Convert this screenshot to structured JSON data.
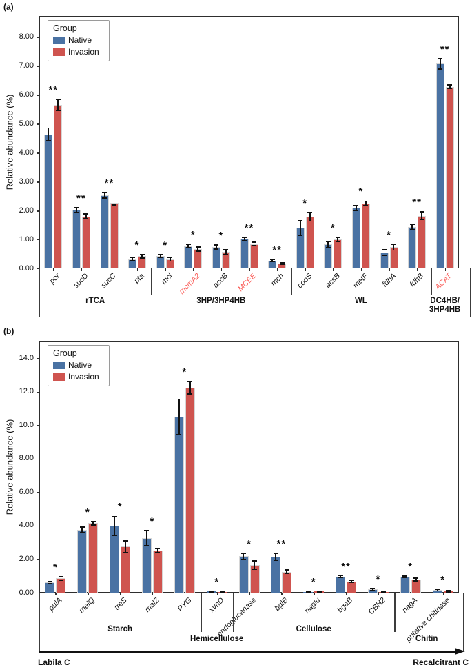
{
  "figure": {
    "panel_a_label": "(a)",
    "panel_b_label": "(b)"
  },
  "colors": {
    "native_bar": "#4a72a3",
    "invasion_bar": "#cf544f",
    "red_gene_label": "#fa5f5a",
    "axis": "#2e2e2e"
  },
  "chart_data": [
    {
      "panel": "a",
      "type": "bar",
      "ylabel": "Relative abundance (%)",
      "ylim": [
        0,
        8.73
      ],
      "grid": false,
      "legend": {
        "title": "Group",
        "position": "upper left",
        "entries": [
          {
            "label": "Native",
            "color": "#4a72a3"
          },
          {
            "label": "Invasion",
            "color": "#cf544f"
          }
        ]
      },
      "yticks": [
        {
          "v": 0,
          "label": "0.00"
        },
        {
          "v": 1,
          "label": "1.00"
        },
        {
          "v": 2,
          "label": "2.00"
        },
        {
          "v": 3,
          "label": "3.00"
        },
        {
          "v": 4,
          "label": "4.00"
        },
        {
          "v": 5,
          "label": "5.00"
        },
        {
          "v": 6,
          "label": "6.00"
        },
        {
          "v": 7,
          "label": "7.00"
        },
        {
          "v": 8,
          "label": "8.00"
        }
      ],
      "categories": [
        {
          "label": "por",
          "sig": "**",
          "red": false
        },
        {
          "label": "sucD",
          "sig": "**",
          "red": false
        },
        {
          "label": "sucC",
          "sig": "**",
          "red": false
        },
        {
          "label": "pta",
          "sig": "*",
          "red": false
        },
        {
          "label": "mcl",
          "sig": "*",
          "red": false
        },
        {
          "label": "mcmA2",
          "sig": "*",
          "red": true
        },
        {
          "label": "accB",
          "sig": "*",
          "red": false
        },
        {
          "label": "MCEE",
          "sig": "**",
          "red": true
        },
        {
          "label": "mch",
          "sig": "**",
          "red": false
        },
        {
          "label": "cooS",
          "sig": "*",
          "red": false
        },
        {
          "label": "acsB",
          "sig": "*",
          "red": false
        },
        {
          "label": "metF",
          "sig": "*",
          "red": false
        },
        {
          "label": "fdhA",
          "sig": "*",
          "red": false
        },
        {
          "label": "fdhB",
          "sig": "**",
          "red": false
        },
        {
          "label": "ACAT",
          "sig": "**",
          "red": true
        }
      ],
      "series": [
        {
          "name": "Native",
          "color": "#4a72a3",
          "values": [
            4.63,
            2.02,
            2.53,
            0.32,
            0.43,
            0.77,
            0.74,
            1.02,
            0.27,
            1.4,
            0.83,
            2.09,
            0.55,
            1.43,
            7.08
          ],
          "errors": [
            0.22,
            0.08,
            0.1,
            0.05,
            0.05,
            0.06,
            0.07,
            0.06,
            0.04,
            0.25,
            0.1,
            0.09,
            0.09,
            0.08,
            0.18
          ]
        },
        {
          "name": "Invasion",
          "color": "#cf544f",
          "values": [
            5.65,
            1.8,
            2.26,
            0.42,
            0.31,
            0.67,
            0.57,
            0.84,
            0.16,
            1.78,
            1.0,
            2.25,
            0.73,
            1.82,
            6.28
          ],
          "errors": [
            0.2,
            0.08,
            0.07,
            0.06,
            0.06,
            0.07,
            0.08,
            0.06,
            0.03,
            0.15,
            0.07,
            0.08,
            0.1,
            0.13,
            0.07
          ]
        }
      ],
      "groups": [
        {
          "label": "rTCA",
          "start": 0,
          "end": 3,
          "row": 1
        },
        {
          "label": "3HP/3HP4HB",
          "start": 4,
          "end": 8,
          "row": 1
        },
        {
          "label": "WL",
          "start": 9,
          "end": 13,
          "row": 1
        },
        {
          "label": "DC4HB/\n3HP4HB",
          "start": 14,
          "end": 14,
          "row": 1
        }
      ]
    },
    {
      "panel": "b",
      "type": "bar",
      "ylabel": "Relative abundance (%)",
      "ylim": [
        0,
        15.05
      ],
      "grid": false,
      "legend": {
        "title": "Group",
        "position": "upper left",
        "entries": [
          {
            "label": "Native",
            "color": "#4a72a3"
          },
          {
            "label": "Invasion",
            "color": "#cf544f"
          }
        ]
      },
      "yticks": [
        {
          "v": 0,
          "label": "0.00"
        },
        {
          "v": 2,
          "label": "2.00"
        },
        {
          "v": 4,
          "label": "4.00"
        },
        {
          "v": 6,
          "label": "6.00"
        },
        {
          "v": 8,
          "label": "8.00"
        },
        {
          "v": 10,
          "label": "10.0"
        },
        {
          "v": 12,
          "label": "12.0"
        },
        {
          "v": 14,
          "label": "14.0"
        }
      ],
      "categories": [
        {
          "label": "pulA",
          "sig": "*",
          "red": false
        },
        {
          "label": "malQ",
          "sig": "*",
          "red": false
        },
        {
          "label": "treS",
          "sig": "*",
          "red": false
        },
        {
          "label": "malZ",
          "sig": "*",
          "red": false
        },
        {
          "label": "PYG",
          "sig": "*",
          "red": false
        },
        {
          "label": "xynD",
          "sig": "*",
          "red": false
        },
        {
          "label": "endoglucanase",
          "sig": "*",
          "red": false
        },
        {
          "label": "bglB",
          "sig": "**",
          "red": false
        },
        {
          "label": "naglu",
          "sig": "*",
          "red": false
        },
        {
          "label": "bgaB",
          "sig": "**",
          "red": false
        },
        {
          "label": "CBH2",
          "sig": "*",
          "red": false
        },
        {
          "label": "nagA",
          "sig": "*",
          "red": false
        },
        {
          "label": "putative chitinase",
          "sig": "*",
          "red": false
        }
      ],
      "series": [
        {
          "name": "Native",
          "color": "#4a72a3",
          "values": [
            0.6,
            3.76,
            3.98,
            3.25,
            10.52,
            0.07,
            2.17,
            2.15,
            0.03,
            0.95,
            0.2,
            0.95,
            0.15
          ],
          "errors": [
            0.06,
            0.15,
            0.58,
            0.45,
            1.05,
            0.02,
            0.18,
            0.2,
            0.01,
            0.06,
            0.06,
            0.05,
            0.04
          ]
        },
        {
          "name": "Invasion",
          "color": "#cf544f",
          "values": [
            0.85,
            4.15,
            2.75,
            2.53,
            12.25,
            0.04,
            1.65,
            1.25,
            0.07,
            0.67,
            0.05,
            0.79,
            0.08
          ],
          "errors": [
            0.1,
            0.1,
            0.35,
            0.13,
            0.38,
            0.01,
            0.25,
            0.12,
            0.02,
            0.08,
            0.02,
            0.08,
            0.04
          ]
        }
      ],
      "groups": [
        {
          "label": "Starch",
          "start": 0,
          "end": 4,
          "row": 1
        },
        {
          "label": "Hemicellulose",
          "start": 5,
          "end": 5,
          "row": 2
        },
        {
          "label": "Cellulose",
          "start": 6,
          "end": 10,
          "row": 1
        },
        {
          "label": "Chitin",
          "start": 11,
          "end": 12,
          "row": 2
        }
      ],
      "axis_arrow": {
        "left_label": "Labila C",
        "right_label": "Recalcitrant C"
      }
    }
  ]
}
